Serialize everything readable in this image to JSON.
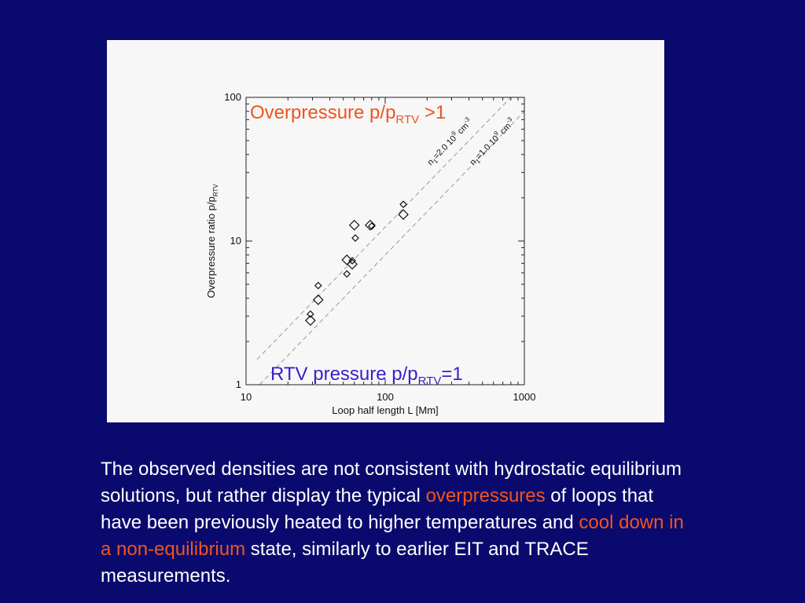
{
  "chart_data": {
    "type": "scatter",
    "xscale": "log",
    "yscale": "log",
    "xlim": [
      10,
      1000
    ],
    "ylim": [
      1,
      100
    ],
    "xlabel": "Loop half length  L [Mm]",
    "ylabel": {
      "main": "Overpressure ratio  p/p",
      "sub": "RTV"
    },
    "x_tick_labels": [
      "10",
      "100",
      "1000"
    ],
    "y_tick_labels": [
      "1",
      "10",
      "100"
    ],
    "series": [
      {
        "marker": "diamond",
        "points": [
          {
            "x": 29,
            "y": 3.1,
            "size": "small"
          },
          {
            "x": 29,
            "y": 2.8,
            "size": "large"
          },
          {
            "x": 33,
            "y": 4.9,
            "size": "small"
          },
          {
            "x": 33,
            "y": 3.9,
            "size": "large"
          },
          {
            "x": 53,
            "y": 7.4,
            "size": "large"
          },
          {
            "x": 53,
            "y": 5.9,
            "size": "small"
          },
          {
            "x": 58,
            "y": 7.3,
            "size": "small"
          },
          {
            "x": 58,
            "y": 6.9,
            "size": "large"
          },
          {
            "x": 60,
            "y": 12.9,
            "size": "large"
          },
          {
            "x": 61,
            "y": 10.5,
            "size": "small"
          },
          {
            "x": 78,
            "y": 12.9,
            "size": "large"
          },
          {
            "x": 80,
            "y": 12.7,
            "size": "small"
          },
          {
            "x": 135,
            "y": 18.0,
            "size": "small"
          },
          {
            "x": 135,
            "y": 15.3,
            "size": "large"
          }
        ]
      }
    ],
    "reference_lines": [
      {
        "style": "dashed",
        "color": "#999999",
        "label_main": "n",
        "label_sub": "1",
        "label_rest": "=2.0 10",
        "label_sup": "9",
        "label_unit": " cm",
        "label_unit_sup": "-3",
        "p1": [
          12,
          1.5
        ],
        "p2": [
          1000,
          125
        ]
      },
      {
        "style": "dashed",
        "color": "#999999",
        "label_main": "n",
        "label_sub": "1",
        "label_rest": "=1.0 10",
        "label_sup": "9",
        "label_unit": " cm",
        "label_unit_sup": "-3",
        "p1": [
          12.5,
          1
        ],
        "p2": [
          1000,
          80
        ]
      }
    ],
    "annotations": {
      "top": {
        "main": "Overpressure p/p",
        "sub": "RTV",
        "rest": " >1",
        "color": "#f0541e"
      },
      "bottom": {
        "main": "RTV pressure p/p",
        "sub": "RTV",
        "rest": "=1",
        "color": "#3a20cc"
      }
    }
  },
  "caption": {
    "part1": "The observed densities are not consistent with hydrostatic equilibrium solutions, but rather display the typical ",
    "hl1": "overpressures",
    "part2": " of loops that have been previously heated to higher temperatures and ",
    "hl2": "cool down in a non-equilibrium",
    "part3": " state, similarly to earlier EIT and TRACE measurements."
  }
}
